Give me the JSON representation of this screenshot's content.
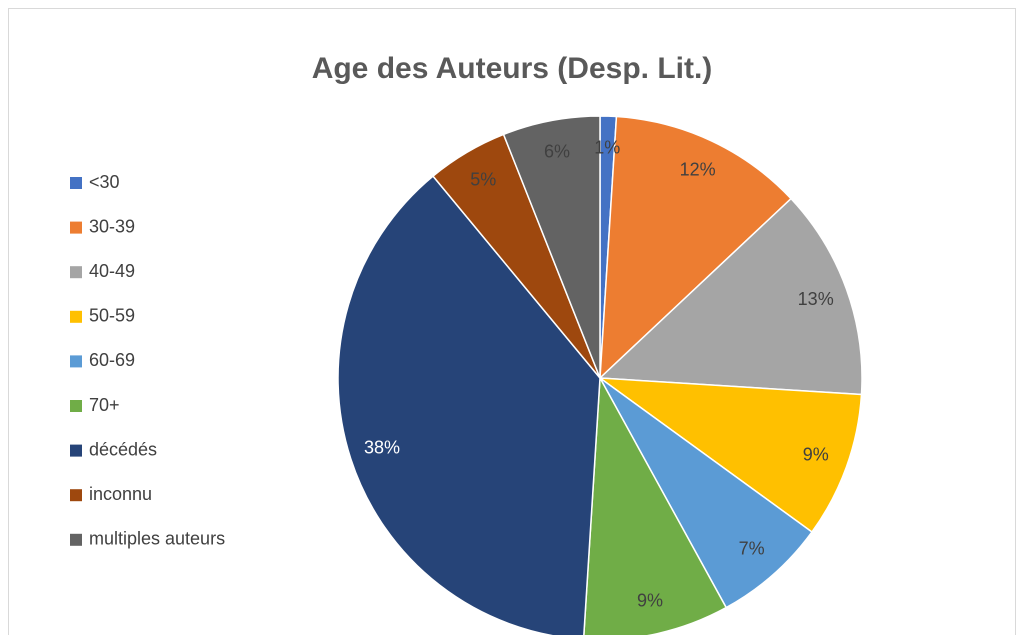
{
  "chart_data": {
    "type": "pie",
    "title": "Age des Auteurs (Desp. Lit.)",
    "categories": [
      "<30",
      "30-39",
      "40-49",
      "50-59",
      "60-69",
      "70+",
      "décédés",
      "inconnu",
      "multiples auteurs"
    ],
    "values": [
      1,
      12,
      13,
      9,
      7,
      9,
      38,
      5,
      6
    ],
    "value_labels": [
      "1%",
      "12%",
      "13%",
      "9%",
      "7%",
      "9%",
      "38%",
      "5%",
      "6%"
    ],
    "colors": [
      "#4472c4",
      "#ed7d31",
      "#a5a5a5",
      "#ffc000",
      "#5b9bd5",
      "#70ad47",
      "#264478",
      "#9e480e",
      "#636363"
    ],
    "legend": "left"
  }
}
